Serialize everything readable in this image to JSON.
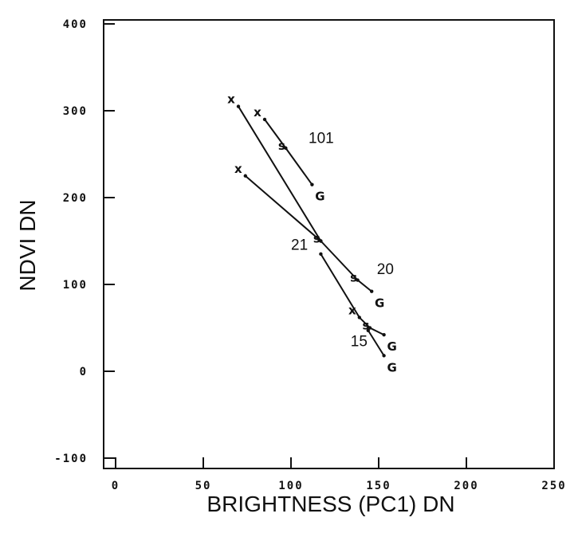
{
  "chart_data": {
    "type": "line",
    "xlabel": "BRIGHTNESS  (PC1)  DN",
    "ylabel": "NDVI DN",
    "xlim": [
      0,
      250
    ],
    "ylim": [
      -100,
      400
    ],
    "x_ticks": [
      "0",
      "50",
      "100",
      "150",
      "200",
      "250"
    ],
    "y_ticks": [
      "-100",
      "0",
      "100",
      "200",
      "300",
      "400"
    ],
    "grid": false,
    "series": [
      {
        "name": "101",
        "points": [
          {
            "x": 85,
            "y": 290,
            "label": "X"
          },
          {
            "x": 97,
            "y": 257,
            "label": "S"
          },
          {
            "x": 112,
            "y": 215,
            "label": "G"
          }
        ]
      },
      {
        "name": "21",
        "points": [
          {
            "x": 70,
            "y": 305,
            "label": "X"
          },
          {
            "x": 117,
            "y": 150,
            "label": "S"
          },
          {
            "x": 74,
            "y": 225,
            "label": "X"
          }
        ]
      },
      {
        "name": "20",
        "points": [
          {
            "x": 117,
            "y": 150,
            "label": ""
          },
          {
            "x": 138,
            "y": 105,
            "label": "S"
          },
          {
            "x": 146,
            "y": 92,
            "label": "G"
          }
        ]
      },
      {
        "name": "15",
        "points": [
          {
            "x": 117,
            "y": 135,
            "label": ""
          },
          {
            "x": 139,
            "y": 62,
            "label": "X"
          },
          {
            "x": 145,
            "y": 50,
            "label": "S"
          },
          {
            "x": 153,
            "y": 42,
            "label": "G"
          }
        ]
      },
      {
        "name": "",
        "points": [
          {
            "x": 144,
            "y": 47,
            "label": ""
          },
          {
            "x": 153,
            "y": 18,
            "label": "G"
          }
        ]
      }
    ],
    "group_labels": [
      {
        "text": "101",
        "x": 110,
        "y": 263
      },
      {
        "text": "21",
        "x": 100,
        "y": 140
      },
      {
        "text": "20",
        "x": 149,
        "y": 112
      },
      {
        "text": "15",
        "x": 134,
        "y": 29
      }
    ]
  }
}
